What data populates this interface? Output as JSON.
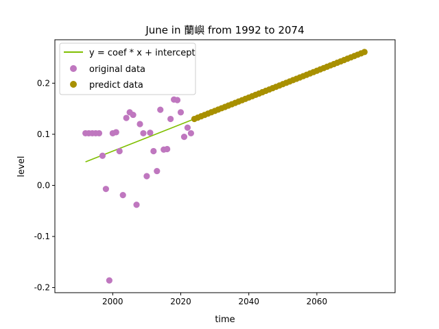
{
  "chart_data": {
    "type": "scatter",
    "title": "June in 蘭嶼 from 1992 to 2074",
    "xlabel": "time",
    "ylabel": "level",
    "xlim": [
      1983,
      2083
    ],
    "ylim": [
      -0.21,
      0.285
    ],
    "xticks": [
      2000,
      2020,
      2040,
      2060
    ],
    "yticks": [
      -0.2,
      -0.1,
      0.0,
      0.1,
      0.2
    ],
    "ytick_labels": [
      "-0.2",
      "-0.1",
      "0.0",
      "0.1",
      "0.2"
    ],
    "grid": false,
    "legend_position": "upper-left",
    "colors": {
      "fit_line": "#7fbf00",
      "original": "#bf77bf",
      "predict": "#a89000"
    },
    "series": [
      {
        "name": "y = coef * x + intercept",
        "kind": "line",
        "x": [
          1992,
          2024
        ],
        "y": [
          0.046,
          0.13
        ]
      },
      {
        "name": "original data",
        "kind": "scatter",
        "x": [
          1992,
          1993,
          1994,
          1995,
          1996,
          1997,
          1998,
          1999,
          2000,
          2001,
          2002,
          2003,
          2004,
          2005,
          2006,
          2007,
          2008,
          2009,
          2010,
          2011,
          2012,
          2013,
          2014,
          2015,
          2016,
          2017,
          2018,
          2019,
          2020,
          2021,
          2022,
          2023
        ],
        "y": [
          0.102,
          0.102,
          0.102,
          0.102,
          0.102,
          0.058,
          -0.007,
          -0.186,
          0.102,
          0.104,
          0.067,
          -0.019,
          0.132,
          0.143,
          0.138,
          -0.038,
          0.12,
          0.102,
          0.018,
          0.103,
          0.067,
          0.028,
          0.148,
          0.07,
          0.071,
          0.13,
          0.168,
          0.167,
          0.143,
          0.095,
          0.113,
          0.102
        ]
      },
      {
        "name": "predict data",
        "kind": "scatter",
        "x_start": 2024,
        "x_end": 2074,
        "y_start": 0.13,
        "y_end": 0.261
      }
    ]
  }
}
